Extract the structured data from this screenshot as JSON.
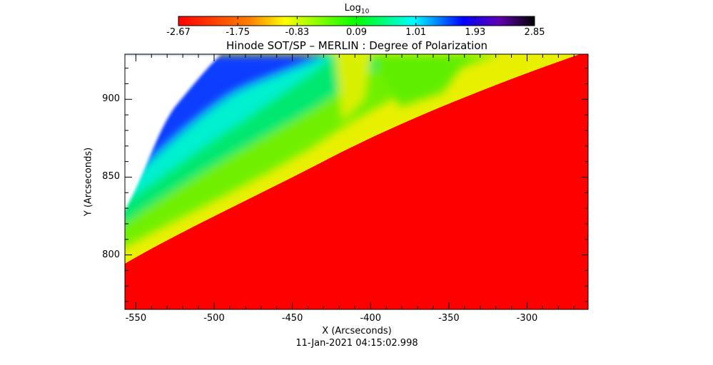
{
  "chart_data": {
    "type": "heatmap",
    "title": "Hinode SOT/SP – MERLIN : Degree of Polarization",
    "xlabel": "X (Arcseconds)",
    "ylabel": "Y (Arcseconds)",
    "xlim": [
      -557,
      -261
    ],
    "ylim": [
      765,
      929
    ],
    "xticks": [
      "-550",
      "-500",
      "-450",
      "-400",
      "-350",
      "-300"
    ],
    "yticks": [
      "800",
      "850",
      "900"
    ],
    "xtick_values": [
      -550,
      -500,
      -450,
      -400,
      -350,
      -300
    ],
    "ytick_values": [
      800,
      850,
      900
    ],
    "timestamp": "11-Jan-2021 04:15:02.998",
    "colorbar": {
      "label": "Log",
      "label_sub": "10",
      "range": [
        -2.67,
        2.85
      ],
      "ticks": [
        "-2.67",
        "-1.75",
        "-0.83",
        "0.09",
        "1.01",
        "1.93",
        "2.85"
      ],
      "colors": [
        "#ff0000",
        "#ff8000",
        "#ffff00",
        "#00ff00",
        "#00ffff",
        "#0000ff",
        "#6000b0",
        "#000000"
      ]
    },
    "description_colors": {
      "disk": "#ff0000",
      "limb": "#ffff00",
      "off_limb": "#00ff80",
      "outer": "#0000ff"
    }
  }
}
